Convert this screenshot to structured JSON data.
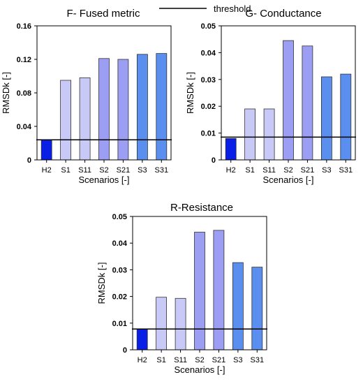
{
  "legend": {
    "threshold_label": "threshold"
  },
  "colors": {
    "H2": "#0a1fe6",
    "S1": "#c8c9f6",
    "S11": "#c8c9f6",
    "S2": "#9b9ef2",
    "S21": "#9b9ef2",
    "S3": "#5a8ff0",
    "S31": "#5a8ff0"
  },
  "chart_data": [
    {
      "type": "bar",
      "title": "F- Fused metric",
      "xlabel": "Scenarios [-]",
      "ylabel": "RMSDk [-]",
      "categories": [
        "H2",
        "S1",
        "S11",
        "S2",
        "S21",
        "S3",
        "S31"
      ],
      "values": [
        0.024,
        0.095,
        0.098,
        0.121,
        0.12,
        0.126,
        0.127
      ],
      "threshold": 0.024,
      "ylim": [
        0,
        0.16
      ],
      "yticks": [
        0,
        0.04,
        0.08,
        0.12,
        0.16
      ],
      "ytick_labels": [
        "0",
        "0.04",
        "0.08",
        "0.12",
        "0.16"
      ]
    },
    {
      "type": "bar",
      "title": "G- Conductance",
      "xlabel": "Scenarios [-]",
      "ylabel": "RMSDk [-]",
      "categories": [
        "H2",
        "S1",
        "S11",
        "S2",
        "S21",
        "S3",
        "S31"
      ],
      "values": [
        0.008,
        0.019,
        0.019,
        0.0445,
        0.0425,
        0.031,
        0.032
      ],
      "threshold": 0.0085,
      "ylim": [
        0,
        0.05
      ],
      "yticks": [
        0,
        0.01,
        0.02,
        0.03,
        0.04,
        0.05
      ],
      "ytick_labels": [
        "0",
        "0.01",
        "0.02",
        "0.03",
        "0.04",
        "0.05"
      ]
    },
    {
      "type": "bar",
      "title": "R-Resistance",
      "xlabel": "Scenarios [-]",
      "ylabel": "RMSDk [-]",
      "categories": [
        "H2",
        "S1",
        "S11",
        "S2",
        "S21",
        "S3",
        "S31"
      ],
      "values": [
        0.0078,
        0.0197,
        0.0193,
        0.0441,
        0.0448,
        0.0327,
        0.031
      ],
      "threshold": 0.0078,
      "ylim": [
        0,
        0.05
      ],
      "yticks": [
        0,
        0.01,
        0.02,
        0.03,
        0.04,
        0.05
      ],
      "ytick_labels": [
        "0",
        "0.01",
        "0.02",
        "0.03",
        "0.04",
        "0.05"
      ]
    }
  ]
}
